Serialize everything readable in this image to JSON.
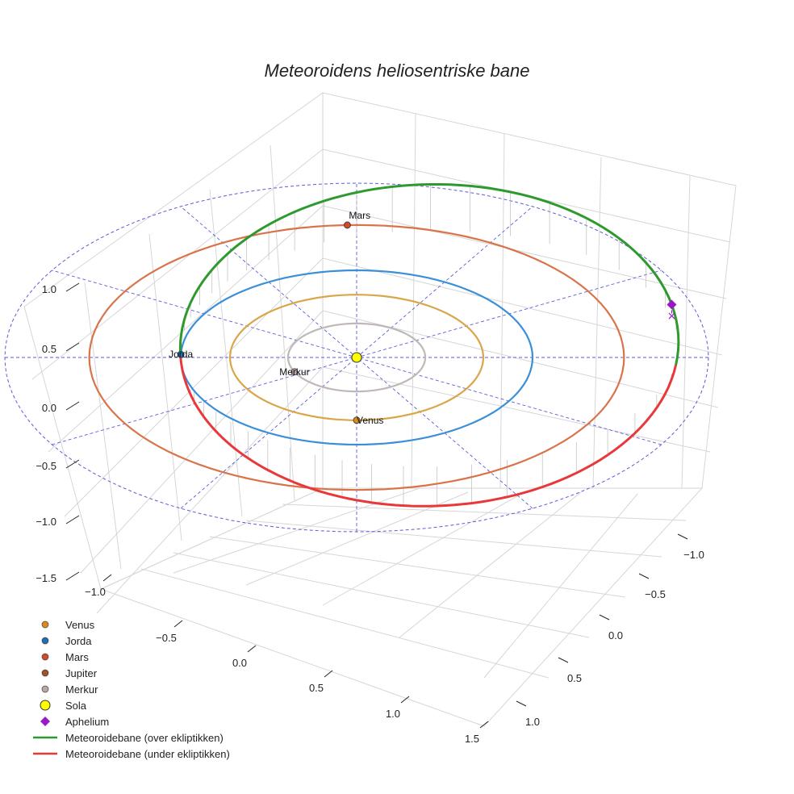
{
  "chart_data": {
    "type": "line3d",
    "title": "Meteoroidens heliosentriske bane",
    "axes": {
      "z_ticks": [
        "1.0",
        "0.5",
        "0.0",
        "−0.5",
        "−1.0",
        "−1.5"
      ],
      "x_ticks": [
        "−1.0",
        "−0.5",
        "0.0",
        "0.5",
        "1.0",
        "1.5"
      ],
      "y_ticks": [
        "−1.0",
        "−0.5",
        "0.0",
        "0.5",
        "1.0"
      ],
      "xlim": [
        -1.5,
        1.8
      ],
      "ylim": [
        -1.6,
        1.6
      ],
      "zlim": [
        -1.5,
        1.1
      ],
      "grid": true
    },
    "orbits": [
      {
        "name": "Merkur",
        "radius": 0.39,
        "color": "#c0b8b6"
      },
      {
        "name": "Venus",
        "radius": 0.72,
        "color": "#d9a64a"
      },
      {
        "name": "Jorda",
        "radius": 1.0,
        "color": "#3a8fd8"
      },
      {
        "name": "Mars",
        "radius": 1.52,
        "color": "#d9734a"
      }
    ],
    "reference_circle": {
      "radius": 2.0,
      "color": "#5b5bd6"
    },
    "meteoroid_orbit": {
      "semi_major_axis": 1.42,
      "eccentricity": 0.3,
      "perihelion_angle_deg": 166,
      "inclination_deg": 4,
      "above_color": "#2e9a2e",
      "below_color": "#e8383a"
    },
    "planets": [
      {
        "name": "Venus",
        "label": "Venus",
        "angle_deg": 90,
        "radius": 0.72,
        "color": "#d98a1a"
      },
      {
        "name": "Jorda",
        "label": "Jorda",
        "angle_deg": 182,
        "radius": 1.0,
        "color": "#1f6fb2"
      },
      {
        "name": "Mars",
        "label": "Mars",
        "angle_deg": 268,
        "radius": 1.52,
        "color": "#d14a2a"
      },
      {
        "name": "Merkur",
        "label": "Merkur",
        "angle_deg": 155,
        "radius": 0.39,
        "color": "#b8a8a4"
      }
    ],
    "sun": {
      "name": "Sola",
      "color": "#ffff00"
    },
    "aphelium": {
      "name": "Aphelium",
      "color": "#9a18c8"
    },
    "legend": {
      "position": "bottom-left",
      "entries": [
        {
          "label": "Venus",
          "kind": "dot",
          "color": "#d98a1a"
        },
        {
          "label": "Jorda",
          "kind": "dot",
          "color": "#1f6fb2"
        },
        {
          "label": "Mars",
          "kind": "dot",
          "color": "#d14a2a"
        },
        {
          "label": "Jupiter",
          "kind": "dot",
          "color": "#a0522d"
        },
        {
          "label": "Merkur",
          "kind": "dot",
          "color": "#b8a8a4"
        },
        {
          "label": "Sola",
          "kind": "bigdot",
          "color": "#ffff00"
        },
        {
          "label": "Aphelium",
          "kind": "diamond",
          "color": "#9a18c8"
        },
        {
          "label": "Meteoroidebane (over ekliptikken)",
          "kind": "line",
          "color": "#2e9a2e"
        },
        {
          "label": "Meteoroidebane (under ekliptikken)",
          "kind": "line",
          "color": "#e8383a"
        }
      ]
    }
  }
}
